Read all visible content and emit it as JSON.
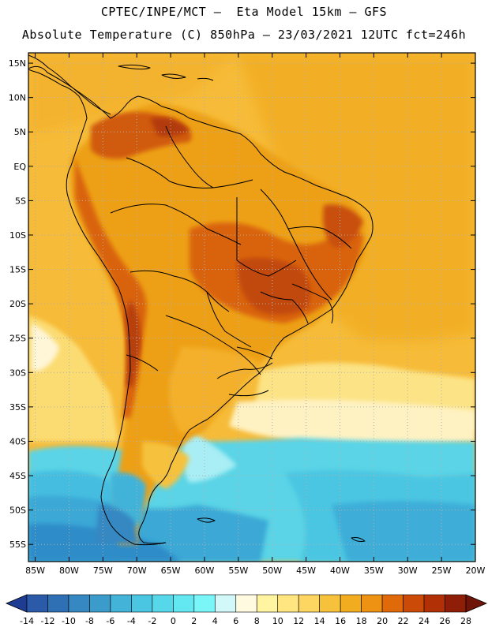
{
  "header": {
    "line1": "CPTEC/INPE/MCT –  Eta Model 15km – GFS",
    "line2": "Absolute Temperature (C) 850hPa – 23/03/2021 12UTC fct=246h"
  },
  "map": {
    "lat_labels": [
      "15N",
      "10N",
      "5N",
      "EQ",
      "5S",
      "10S",
      "15S",
      "20S",
      "25S",
      "30S",
      "35S",
      "40S",
      "45S",
      "50S",
      "55S"
    ],
    "lon_labels": [
      "85W",
      "80W",
      "75W",
      "70W",
      "65W",
      "60W",
      "55W",
      "50W",
      "45W",
      "40W",
      "35W",
      "30W",
      "25W",
      "20W"
    ],
    "extent": {
      "lon": [
        -86,
        -20
      ],
      "lat": [
        -57.5,
        16.5
      ]
    }
  },
  "legend": {
    "labels": [
      "-14",
      "-12",
      "-10",
      "-8",
      "-6",
      "-4",
      "-2",
      "0",
      "2",
      "4",
      "6",
      "8",
      "10",
      "12",
      "14",
      "16",
      "18",
      "20",
      "22",
      "24",
      "26",
      "28"
    ],
    "colors": [
      "#1d3c92",
      "#2a5aa8",
      "#2f70b4",
      "#3688c2",
      "#3b9ccc",
      "#43b3d8",
      "#4bc6e2",
      "#57d8ea",
      "#63e8f2",
      "#7af6f8",
      "#d2f8fa",
      "#fffae0",
      "#fff4a0",
      "#ffe680",
      "#fcd660",
      "#f6c23c",
      "#f2ac20",
      "#ee9214",
      "#e06a0a",
      "#cc4a08",
      "#b23006",
      "#8e1e08",
      "#6e1408"
    ]
  },
  "colors": {
    "ocean_warm": "#f6bb38",
    "land_warm": "#f0a418",
    "land_hot": "#d9640c",
    "land_hotter": "#c24a0a",
    "cool_band": "#fff4c8",
    "cold_water": "#5ad4e6",
    "colder_water": "#3aa8d6",
    "coldest_water": "#2f8cc8"
  }
}
